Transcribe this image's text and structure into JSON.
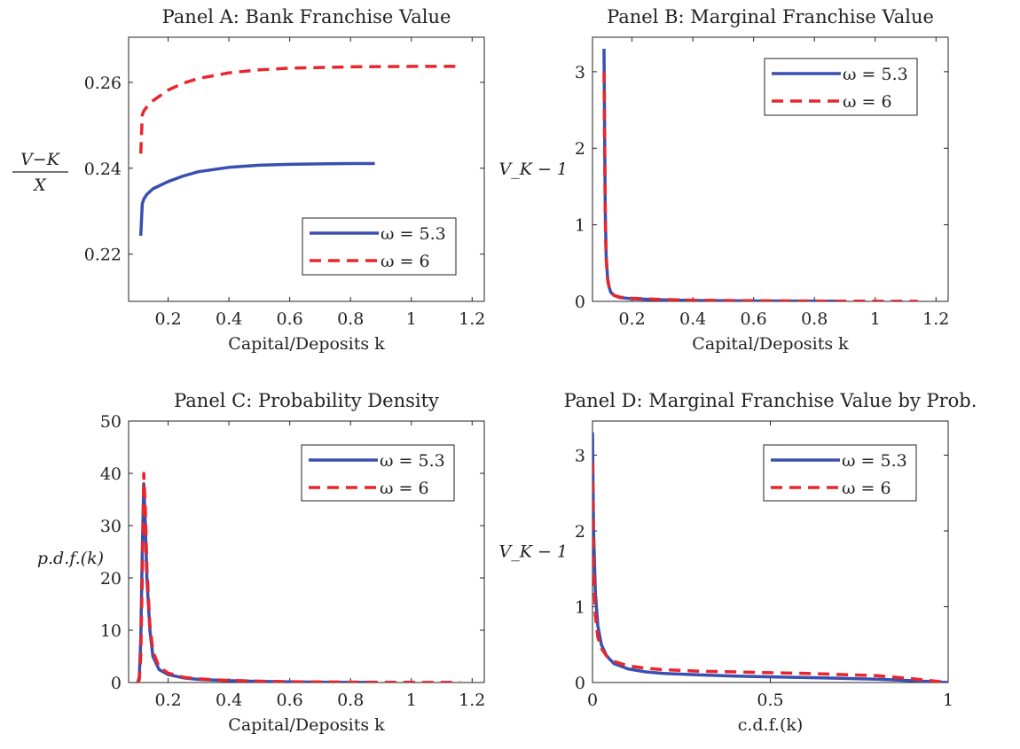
{
  "colors": {
    "omega_5_3": "#3a4fb0",
    "omega_6": "#e8262d"
  },
  "chart_data": [
    {
      "id": "A",
      "type": "line",
      "title": "Panel A: Bank Franchise Value",
      "xlabel": "Capital/Deposits k",
      "ylabel_num": "V−K",
      "ylabel_den": "X",
      "xlim": [
        0.07,
        1.24
      ],
      "ylim": [
        0.209,
        0.2705
      ],
      "xticks": [
        0.2,
        0.4,
        0.6,
        0.8,
        1.0,
        1.2
      ],
      "xtick_labels": [
        "0.2",
        "0.4",
        "0.6",
        "0.8",
        "1",
        "1.2"
      ],
      "yticks": [
        0.22,
        0.24,
        0.26
      ],
      "ytick_labels": [
        "0.22",
        "0.24",
        "0.26"
      ],
      "grid": false,
      "legend_position": "lower-right",
      "series": [
        {
          "name": "ω = 5.3",
          "style": "solid",
          "x": [
            0.11,
            0.115,
            0.12,
            0.13,
            0.15,
            0.2,
            0.25,
            0.3,
            0.4,
            0.5,
            0.6,
            0.7,
            0.8,
            0.88
          ],
          "y": [
            0.2243,
            0.2317,
            0.2328,
            0.2339,
            0.2352,
            0.2369,
            0.2382,
            0.2392,
            0.2402,
            0.2407,
            0.2409,
            0.241,
            0.2411,
            0.2411
          ]
        },
        {
          "name": "ω = 6",
          "style": "dashed",
          "x": [
            0.11,
            0.115,
            0.12,
            0.13,
            0.15,
            0.2,
            0.25,
            0.3,
            0.4,
            0.5,
            0.6,
            0.8,
            1.0,
            1.16
          ],
          "y": [
            0.2434,
            0.2524,
            0.2533,
            0.2543,
            0.2557,
            0.2582,
            0.2598,
            0.2609,
            0.2622,
            0.2629,
            0.2633,
            0.2636,
            0.2637,
            0.2637
          ]
        }
      ]
    },
    {
      "id": "B",
      "type": "line",
      "title": "Panel B: Marginal Franchise Value",
      "xlabel": "Capital/Deposits k",
      "ylabel": "V_K − 1",
      "xlim": [
        0.07,
        1.24
      ],
      "ylim": [
        0,
        3.45
      ],
      "xticks": [
        0.2,
        0.4,
        0.6,
        0.8,
        1.0,
        1.2
      ],
      "xtick_labels": [
        "0.2",
        "0.4",
        "0.6",
        "0.8",
        "1",
        "1.2"
      ],
      "yticks": [
        0,
        1,
        2,
        3
      ],
      "ytick_labels": [
        "0",
        "1",
        "2",
        "3"
      ],
      "grid": false,
      "legend_position": "top-right",
      "series": [
        {
          "name": "ω = 5.3",
          "style": "solid",
          "x": [
            0.108,
            0.11,
            0.112,
            0.115,
            0.12,
            0.125,
            0.13,
            0.14,
            0.16,
            0.2,
            0.3,
            0.4,
            0.6,
            0.88
          ],
          "y": [
            3.3,
            2.2,
            1.2,
            0.6,
            0.3,
            0.18,
            0.12,
            0.08,
            0.05,
            0.035,
            0.02,
            0.012,
            0.006,
            0.002
          ]
        },
        {
          "name": "ω = 6",
          "style": "dashed",
          "x": [
            0.108,
            0.11,
            0.112,
            0.115,
            0.12,
            0.125,
            0.13,
            0.14,
            0.16,
            0.2,
            0.3,
            0.4,
            0.6,
            0.8,
            1.14
          ],
          "y": [
            3.0,
            2.0,
            1.1,
            0.55,
            0.28,
            0.17,
            0.12,
            0.08,
            0.055,
            0.04,
            0.025,
            0.015,
            0.008,
            0.004,
            0.001
          ]
        }
      ]
    },
    {
      "id": "C",
      "type": "line",
      "title": "Panel C: Probability Density",
      "xlabel": "Capital/Deposits k",
      "ylabel": "p.d.f.(k)",
      "xlim": [
        0.07,
        1.24
      ],
      "ylim": [
        0,
        50
      ],
      "xticks": [
        0.2,
        0.4,
        0.6,
        0.8,
        1.0,
        1.2
      ],
      "xtick_labels": [
        "0.2",
        "0.4",
        "0.6",
        "0.8",
        "1",
        "1.2"
      ],
      "yticks": [
        0,
        10,
        20,
        30,
        40,
        50
      ],
      "ytick_labels": [
        "0",
        "10",
        "20",
        "30",
        "40",
        "50"
      ],
      "grid": false,
      "legend_position": "top-right",
      "series": [
        {
          "name": "ω = 5.3",
          "style": "solid",
          "x": [
            0.1,
            0.105,
            0.11,
            0.115,
            0.12,
            0.125,
            0.13,
            0.14,
            0.15,
            0.17,
            0.2,
            0.25,
            0.3,
            0.4,
            0.5,
            0.6,
            0.7,
            0.88
          ],
          "y": [
            0,
            1,
            8,
            25,
            38,
            30,
            20,
            10,
            5,
            2.5,
            1.5,
            0.9,
            0.6,
            0.35,
            0.2,
            0.12,
            0.06,
            0.02
          ]
        },
        {
          "name": "ω = 6",
          "style": "dashed",
          "x": [
            0.1,
            0.105,
            0.11,
            0.115,
            0.12,
            0.125,
            0.13,
            0.14,
            0.15,
            0.17,
            0.2,
            0.25,
            0.3,
            0.4,
            0.5,
            0.6,
            0.8,
            1.0,
            1.16
          ],
          "y": [
            0,
            0.5,
            5,
            20,
            40,
            33,
            22,
            11,
            6,
            3,
            1.8,
            1.0,
            0.7,
            0.4,
            0.25,
            0.15,
            0.07,
            0.03,
            0.01
          ]
        }
      ]
    },
    {
      "id": "D",
      "type": "line",
      "title": "Panel D: Marginal Franchise Value by Prob.",
      "xlabel": "c.d.f.(k)",
      "ylabel": "V_K − 1",
      "xlim": [
        0,
        1
      ],
      "ylim": [
        0,
        3.45
      ],
      "xticks": [
        0,
        0.5,
        1
      ],
      "xtick_labels": [
        "0",
        "0.5",
        "1"
      ],
      "yticks": [
        0,
        1,
        2,
        3
      ],
      "ytick_labels": [
        "0",
        "1",
        "2",
        "3"
      ],
      "grid": false,
      "legend_position": "top-right",
      "series": [
        {
          "name": "ω = 5.3",
          "style": "solid",
          "x": [
            0,
            0.003,
            0.008,
            0.015,
            0.025,
            0.04,
            0.06,
            0.1,
            0.15,
            0.2,
            0.3,
            0.4,
            0.5,
            0.6,
            0.7,
            0.8,
            0.9,
            1.0
          ],
          "y": [
            3.3,
            2.0,
            1.2,
            0.75,
            0.5,
            0.35,
            0.25,
            0.18,
            0.14,
            0.12,
            0.1,
            0.085,
            0.075,
            0.065,
            0.055,
            0.045,
            0.025,
            0.0
          ]
        },
        {
          "name": "ω = 6",
          "style": "dashed",
          "x": [
            0,
            0.003,
            0.008,
            0.015,
            0.025,
            0.04,
            0.06,
            0.1,
            0.15,
            0.2,
            0.3,
            0.4,
            0.5,
            0.6,
            0.7,
            0.8,
            0.9,
            1.0
          ],
          "y": [
            2.9,
            1.6,
            0.9,
            0.6,
            0.45,
            0.35,
            0.28,
            0.22,
            0.19,
            0.17,
            0.15,
            0.14,
            0.13,
            0.12,
            0.105,
            0.09,
            0.05,
            0.0
          ]
        }
      ]
    }
  ]
}
